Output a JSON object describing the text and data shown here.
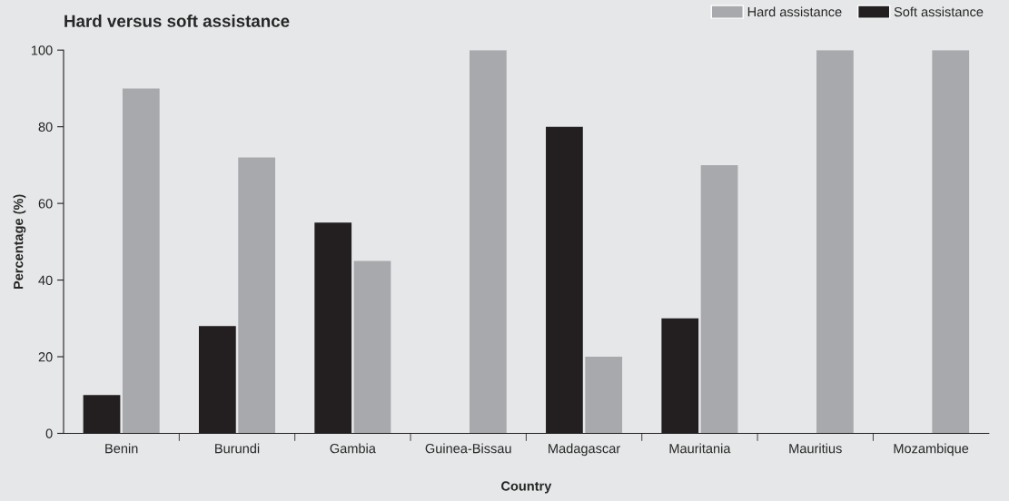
{
  "chart_data": {
    "type": "bar",
    "title": "Hard versus soft assistance",
    "xlabel": "Country",
    "ylabel": "Percentage (%)",
    "categories": [
      "Benin",
      "Burundi",
      "Gambia",
      "Guinea-Bissau",
      "Madagascar",
      "Mauritania",
      "Mauritius",
      "Mozambique"
    ],
    "series": [
      {
        "name": "Soft assistance",
        "color": "#231f20",
        "values": [
          10,
          28,
          55,
          0,
          80,
          30,
          0,
          0
        ]
      },
      {
        "name": "Hard assistance",
        "color": "#a7a9ac",
        "values": [
          90,
          72,
          45,
          100,
          20,
          70,
          100,
          100
        ]
      }
    ],
    "ylim": [
      0,
      100
    ],
    "yticks": [
      0,
      20,
      40,
      60,
      80,
      100
    ],
    "grid": false,
    "legend": "top right"
  }
}
